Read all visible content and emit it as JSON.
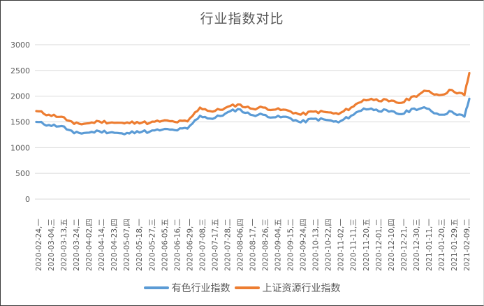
{
  "chart_data": {
    "type": "line",
    "title": "行业指数对比",
    "xlabel": "",
    "ylabel": "",
    "ylim": [
      0,
      3000
    ],
    "yticks": [
      0,
      500,
      1000,
      1500,
      2000,
      2500,
      3000
    ],
    "grid": true,
    "legend_position": "bottom",
    "categories": [
      "2020-02-24,一",
      "2020-03-04,三",
      "2020-03-13,五",
      "2020-03-24,二",
      "2020-04-02,四",
      "2020-04-14,二",
      "2020-04-23,四",
      "2020-05-07,四",
      "2020-05-18,一",
      "2020-05-27,三",
      "2020-06-05,五",
      "2020-06-16,二",
      "2020-06-29,一",
      "2020-07-08,三",
      "2020-07-17,五",
      "2020-07-28,二",
      "2020-08-06,四",
      "2020-08-17,一",
      "2020-08-26,三",
      "2020-09-04,五",
      "2020-09-15,二",
      "2020-09-24,四",
      "2020-10-13,二",
      "2020-10-22,四",
      "2020-11-02,一",
      "2020-11-11,三",
      "2020-11-20,五",
      "2020-12-01,二",
      "2020-12-10,四",
      "2020-12-21,一",
      "2020-12-30,三",
      "2021-01-11,一",
      "2021-01-20,三",
      "2021-01-29,五",
      "2021-02-09,二"
    ],
    "series": [
      {
        "name": "有色行业指数",
        "color": "#5b9bd5",
        "values": [
          1500,
          1440,
          1420,
          1280,
          1290,
          1320,
          1300,
          1260,
          1320,
          1310,
          1350,
          1340,
          1370,
          1620,
          1560,
          1660,
          1750,
          1640,
          1640,
          1590,
          1590,
          1490,
          1560,
          1540,
          1490,
          1620,
          1760,
          1740,
          1700,
          1650,
          1760,
          1760,
          1640,
          1700,
          1600
        ],
        "end_value": 1950
      },
      {
        "name": "上证资源行业指数",
        "color": "#ed7d31",
        "values": [
          1710,
          1640,
          1600,
          1460,
          1470,
          1510,
          1490,
          1470,
          1500,
          1480,
          1520,
          1500,
          1510,
          1780,
          1700,
          1770,
          1840,
          1760,
          1780,
          1740,
          1720,
          1640,
          1700,
          1690,
          1650,
          1780,
          1930,
          1940,
          1900,
          1870,
          2000,
          2100,
          2020,
          2120,
          2020
        ],
        "end_value": 2450
      }
    ]
  },
  "axis": {
    "y_labels": [
      "0",
      "500",
      "1000",
      "1500",
      "2000",
      "2500",
      "3000"
    ],
    "x_labels": [
      {
        "date": "2020-02-24,",
        "dow": "一"
      },
      {
        "date": "2020-03-04,",
        "dow": "三"
      },
      {
        "date": "2020-03-13,",
        "dow": "五"
      },
      {
        "date": "2020-03-24,",
        "dow": "二"
      },
      {
        "date": "2020-04-02,",
        "dow": "四"
      },
      {
        "date": "2020-04-14,",
        "dow": "二"
      },
      {
        "date": "2020-04-23,",
        "dow": "四"
      },
      {
        "date": "2020-05-07,",
        "dow": "四"
      },
      {
        "date": "2020-05-18,",
        "dow": "一"
      },
      {
        "date": "2020-05-27,",
        "dow": "三"
      },
      {
        "date": "2020-06-05,",
        "dow": "五"
      },
      {
        "date": "2020-06-16,",
        "dow": "二"
      },
      {
        "date": "2020-06-29,",
        "dow": "一"
      },
      {
        "date": "2020-07-08,",
        "dow": "三"
      },
      {
        "date": "2020-07-17,",
        "dow": "五"
      },
      {
        "date": "2020-07-28,",
        "dow": "二"
      },
      {
        "date": "2020-08-06,",
        "dow": "四"
      },
      {
        "date": "2020-08-17,",
        "dow": "一"
      },
      {
        "date": "2020-08-26,",
        "dow": "三"
      },
      {
        "date": "2020-09-04,",
        "dow": "五"
      },
      {
        "date": "2020-09-15,",
        "dow": "二"
      },
      {
        "date": "2020-09-24,",
        "dow": "四"
      },
      {
        "date": "2020-10-13,",
        "dow": "二"
      },
      {
        "date": "2020-10-22,",
        "dow": "四"
      },
      {
        "date": "2020-11-02,",
        "dow": "一"
      },
      {
        "date": "2020-11-11,",
        "dow": "三"
      },
      {
        "date": "2020-11-20,",
        "dow": "五"
      },
      {
        "date": "2020-12-01,",
        "dow": "二"
      },
      {
        "date": "2020-12-10,",
        "dow": "四"
      },
      {
        "date": "2020-12-21,",
        "dow": "一"
      },
      {
        "date": "2020-12-30,",
        "dow": "三"
      },
      {
        "date": "2021-01-11,",
        "dow": "一"
      },
      {
        "date": "2021-01-20,",
        "dow": "三"
      },
      {
        "date": "2021-01-29,",
        "dow": "五"
      },
      {
        "date": "2021-02-09,",
        "dow": "二"
      }
    ]
  },
  "legend": {
    "items": [
      {
        "label": "有色行业指数",
        "color": "#5b9bd5"
      },
      {
        "label": "上证资源行业指数",
        "color": "#ed7d31"
      }
    ]
  },
  "style": {
    "grid_color": "#d9d9d9",
    "text_color": "#595959"
  }
}
